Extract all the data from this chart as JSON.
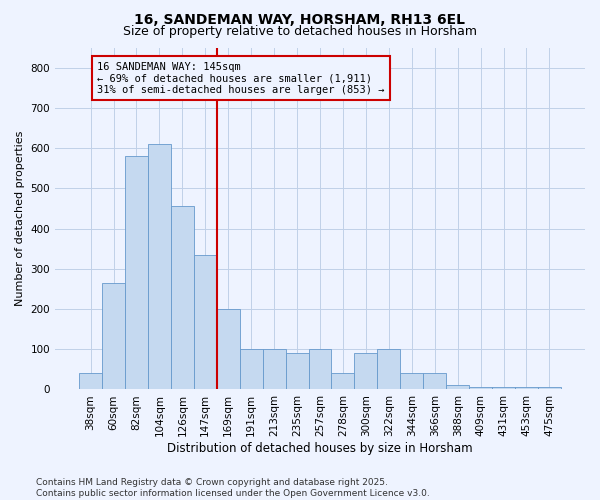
{
  "title1": "16, SANDEMAN WAY, HORSHAM, RH13 6EL",
  "title2": "Size of property relative to detached houses in Horsham",
  "xlabel": "Distribution of detached houses by size in Horsham",
  "ylabel": "Number of detached properties",
  "categories": [
    "38sqm",
    "60sqm",
    "82sqm",
    "104sqm",
    "126sqm",
    "147sqm",
    "169sqm",
    "191sqm",
    "213sqm",
    "235sqm",
    "257sqm",
    "278sqm",
    "300sqm",
    "322sqm",
    "344sqm",
    "366sqm",
    "388sqm",
    "409sqm",
    "431sqm",
    "453sqm",
    "475sqm"
  ],
  "values": [
    40,
    265,
    580,
    610,
    455,
    335,
    200,
    100,
    100,
    90,
    100,
    40,
    90,
    100,
    40,
    40,
    10,
    5,
    5,
    5,
    5
  ],
  "bar_color": "#c5d9f0",
  "bar_edge_color": "#6699cc",
  "vline_x_index": 5,
  "vline_color": "#cc0000",
  "annotation_text": "16 SANDEMAN WAY: 145sqm\n← 69% of detached houses are smaller (1,911)\n31% of semi-detached houses are larger (853) →",
  "annotation_box_facecolor": "#eef3ff",
  "annotation_box_edgecolor": "#cc0000",
  "ylim": [
    0,
    850
  ],
  "yticks": [
    0,
    100,
    200,
    300,
    400,
    500,
    600,
    700,
    800
  ],
  "background_color": "#eef3ff",
  "grid_color": "#c0d0e8",
  "footer_text": "Contains HM Land Registry data © Crown copyright and database right 2025.\nContains public sector information licensed under the Open Government Licence v3.0.",
  "title_fontsize": 10,
  "subtitle_fontsize": 9,
  "xlabel_fontsize": 8.5,
  "ylabel_fontsize": 8,
  "tick_fontsize": 7.5,
  "annotation_fontsize": 7.5,
  "footer_fontsize": 6.5
}
